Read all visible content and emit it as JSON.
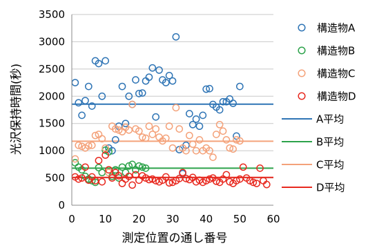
{
  "chart_data": {
    "type": "scatter",
    "xlabel": "測定位置の通し番号",
    "ylabel": "光沢保持時間(秒)",
    "xlim": [
      0,
      60
    ],
    "ylim": [
      0,
      3500
    ],
    "x_ticks": [
      0,
      10,
      20,
      30,
      40,
      50,
      60
    ],
    "y_ticks": [
      0,
      500,
      1000,
      1500,
      2000,
      2500,
      3000,
      3500
    ],
    "grid": "horizontal",
    "legend_position": "right",
    "series": [
      {
        "name": "構造物A",
        "color": "#2e74b5",
        "x": [
          1,
          2,
          3,
          4,
          5,
          6,
          7,
          8,
          9,
          10,
          11,
          12,
          13,
          14,
          15,
          16,
          17,
          18,
          19,
          20,
          21,
          22,
          23,
          24,
          25,
          26,
          27,
          28,
          29,
          30,
          31,
          32,
          33,
          34,
          35,
          36,
          37,
          38,
          39,
          40,
          41,
          42,
          43,
          44,
          45,
          46,
          47,
          48,
          49,
          50
        ],
        "y": [
          2250,
          1880,
          1650,
          1920,
          2180,
          1820,
          2650,
          2600,
          2000,
          2650,
          1050,
          1000,
          1200,
          1450,
          2180,
          1500,
          2000,
          1850,
          2300,
          2050,
          2060,
          2280,
          2350,
          2520,
          1620,
          2480,
          2300,
          2250,
          2380,
          2280,
          3090,
          1020,
          580,
          1100,
          1680,
          1480,
          1580,
          1450,
          1650,
          2130,
          2140,
          1850,
          1800,
          1750,
          1900,
          1900,
          1950,
          1870,
          1270,
          2180
        ]
      },
      {
        "name": "構造物B",
        "color": "#2ca24a",
        "x": [
          1,
          2,
          3,
          4,
          5,
          6,
          7,
          8,
          9,
          10,
          11,
          12,
          13,
          14,
          15,
          16,
          17,
          18,
          19,
          20,
          21,
          22
        ],
        "y": [
          780,
          700,
          650,
          530,
          480,
          450,
          420,
          690,
          600,
          1010,
          980,
          530,
          650,
          500,
          700,
          600,
          720,
          750,
          650,
          720,
          700,
          680
        ]
      },
      {
        "name": "構造物C",
        "color": "#f4a27a",
        "x": [
          1,
          2,
          3,
          4,
          5,
          6,
          7,
          8,
          9,
          10,
          11,
          12,
          13,
          14,
          15,
          16,
          17,
          18,
          19,
          20,
          21,
          22,
          23,
          24,
          25,
          26,
          27,
          28,
          29,
          30,
          31,
          32,
          33,
          34,
          35,
          36,
          37,
          38,
          39,
          40,
          41,
          42,
          43,
          44,
          45,
          46,
          47,
          48,
          49,
          50
        ],
        "y": [
          850,
          1100,
          1080,
          1050,
          1090,
          1100,
          1280,
          1300,
          1220,
          1050,
          600,
          1450,
          1400,
          1380,
          1350,
          1430,
          1380,
          1850,
          1400,
          1360,
          1250,
          1230,
          1450,
          1300,
          1400,
          1250,
          1180,
          1230,
          1450,
          1050,
          1790,
          1400,
          1050,
          1000,
          1280,
          1120,
          1000,
          1200,
          1000,
          1050,
          1000,
          880,
          1300,
          1480,
          1360,
          1200,
          1050,
          1030,
          1200,
          1180
        ]
      },
      {
        "name": "構造物D",
        "color": "#e8281e",
        "x": [
          1,
          2,
          3,
          4,
          5,
          6,
          7,
          8,
          9,
          10,
          11,
          12,
          13,
          14,
          15,
          16,
          17,
          18,
          19,
          20,
          21,
          22,
          23,
          24,
          25,
          26,
          27,
          28,
          29,
          30,
          31,
          32,
          33,
          34,
          35,
          36,
          37,
          38,
          39,
          40,
          41,
          42,
          43,
          44,
          45,
          46,
          47,
          48,
          49,
          50,
          51,
          52,
          53,
          54,
          55,
          56,
          57,
          58
        ],
        "y": [
          520,
          480,
          500,
          700,
          460,
          520,
          450,
          820,
          430,
          920,
          650,
          500,
          600,
          540,
          400,
          480,
          530,
          370,
          560,
          460,
          540,
          500,
          470,
          480,
          450,
          430,
          460,
          520,
          410,
          420,
          450,
          490,
          600,
          490,
          470,
          510,
          430,
          460,
          420,
          450,
          480,
          500,
          440,
          420,
          480,
          560,
          430,
          400,
          450,
          480,
          700,
          500,
          450,
          420,
          400,
          680,
          450,
          380
        ]
      }
    ],
    "averages": [
      {
        "name": "A平均",
        "value": 1855,
        "color": "#2e74b5"
      },
      {
        "name": "B平均",
        "value": 680,
        "color": "#2ca24a"
      },
      {
        "name": "C平均",
        "value": 1175,
        "color": "#f4a27a"
      },
      {
        "name": "D平均",
        "value": 510,
        "color": "#e8281e"
      }
    ]
  }
}
